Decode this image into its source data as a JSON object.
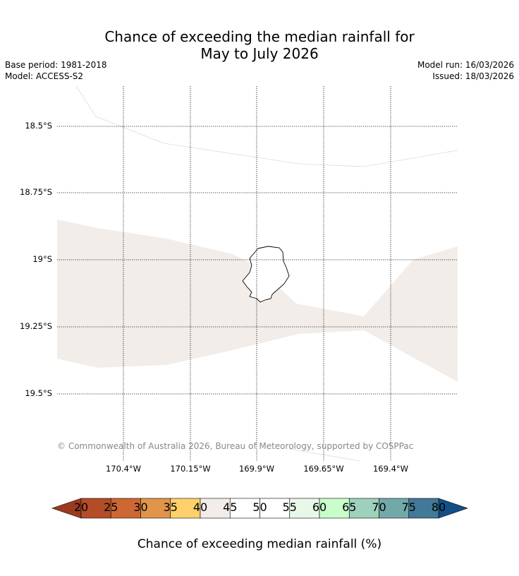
{
  "title_line1": "Chance of exceeding the median rainfall for",
  "title_line2": "May to July 2026",
  "base_period": "Base period: 1981-2018",
  "model": "Model: ACCESS-S2",
  "model_run": "Model run: 16/03/2026",
  "issued": "Issued: 18/03/2026",
  "lat_labels": [
    "18.5°S",
    "18.75°S",
    "19°S",
    "19.25°S",
    "19.5°S"
  ],
  "lon_labels": [
    "170.4°W",
    "170.15°W",
    "169.9°W",
    "169.65°W",
    "169.4°W"
  ],
  "copyright": "© Commonwealth of Australia 2026, Bureau of Meteorology, supported by COSPPac",
  "legend": {
    "title": "Chance of exceeding median rainfall (%)",
    "ticks": [
      "20",
      "25",
      "30",
      "35",
      "40",
      "45",
      "50",
      "55",
      "60",
      "65",
      "70",
      "75",
      "80"
    ],
    "under_color": "#9b3a21",
    "over_color": "#134f87",
    "colors": [
      "#b34d28",
      "#cd6734",
      "#e0954a",
      "#fdd06b",
      "#f2ede8",
      "#ffffff",
      "#ffffff",
      "#e9f7e8",
      "#c9fdcb",
      "#9ed1bb",
      "#71a9a9",
      "#427998"
    ]
  },
  "map": {
    "land_color": "#ffffff",
    "band_color": "#f2ede8"
  }
}
